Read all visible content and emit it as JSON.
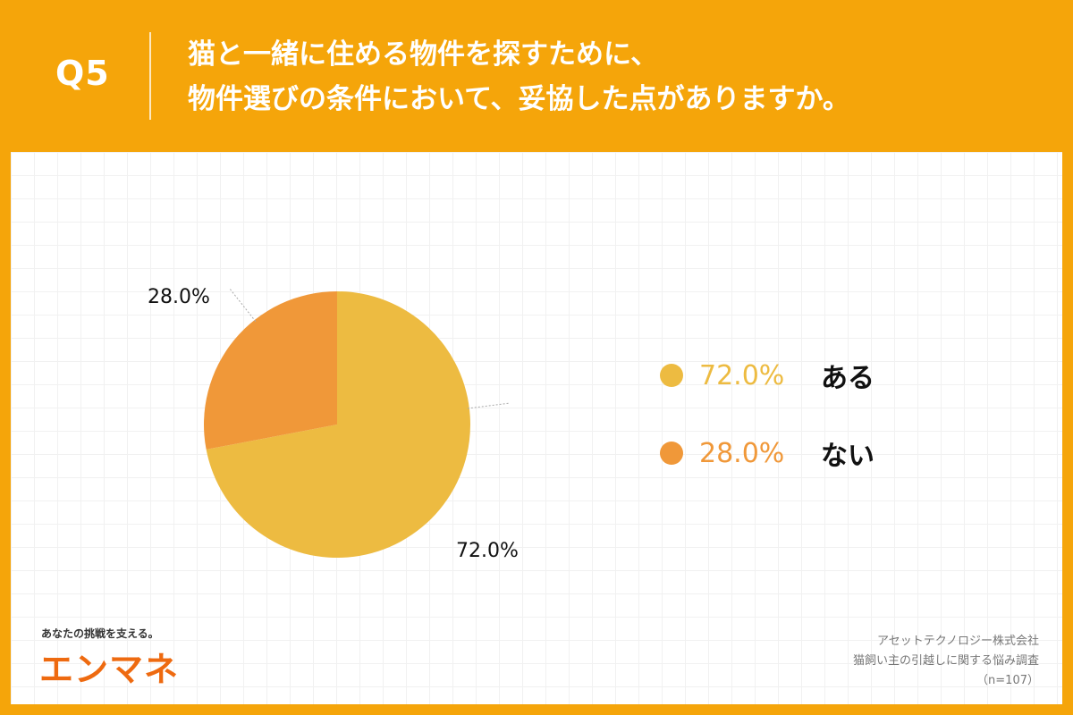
{
  "header": {
    "question_number": "Q5",
    "question_line1": "猫と一緒に住める物件を探すために、",
    "question_line2": "物件選びの条件において、妥協した点がありますか。"
  },
  "chart_data": {
    "type": "pie",
    "slices": [
      {
        "label": "ある",
        "value": 72.0,
        "value_label": "72.0%",
        "color": "#EDBB41"
      },
      {
        "label": "ない",
        "value": 28.0,
        "value_label": "28.0%",
        "color": "#F09839"
      }
    ],
    "start_angle_deg": 0,
    "direction": "clockwise",
    "legend": "right"
  },
  "legend": [
    {
      "percent": "72.0%",
      "name": "ある",
      "color": "#EDBB41"
    },
    {
      "percent": "28.0%",
      "name": "ない",
      "color": "#F09839"
    }
  ],
  "branding": {
    "tagline": "あなたの挑戦を支える。",
    "logo": "エンマネ",
    "logo_color": "#EE6A10"
  },
  "source": {
    "company": "アセットテクノロジー株式会社",
    "survey": "猫飼い主の引越しに関する悩み調査",
    "sample": "（n=107）"
  },
  "colors": {
    "background": "#F5A50A",
    "panel": "#FFFFFF"
  }
}
